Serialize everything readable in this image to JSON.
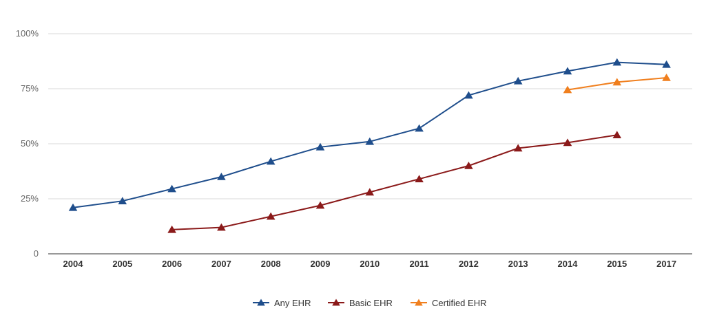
{
  "chart_data": {
    "type": "line",
    "title": "",
    "xlabel": "",
    "ylabel": "",
    "categories": [
      "2004",
      "2005",
      "2006",
      "2007",
      "2008",
      "2009",
      "2010",
      "2011",
      "2012",
      "2013",
      "2014",
      "2015",
      "2017"
    ],
    "y_ticks": [
      {
        "value": 0,
        "label": "0"
      },
      {
        "value": 25,
        "label": "25%"
      },
      {
        "value": 50,
        "label": "50%"
      },
      {
        "value": 75,
        "label": "75%"
      },
      {
        "value": 100,
        "label": "100%"
      }
    ],
    "ylim": [
      0,
      100
    ],
    "grid": true,
    "legend_position": "bottom",
    "series": [
      {
        "name": "Any EHR",
        "color": "#1f4e8c",
        "values": [
          21,
          24,
          29.5,
          35,
          42,
          48.5,
          51,
          57,
          72,
          78.5,
          83,
          87,
          86
        ]
      },
      {
        "name": "Basic EHR",
        "color": "#8b1a1a",
        "values": [
          null,
          null,
          11,
          12,
          17,
          22,
          28,
          34,
          40,
          48,
          50.5,
          54,
          null
        ]
      },
      {
        "name": "Certified EHR",
        "color": "#f07f1e",
        "values": [
          null,
          null,
          null,
          null,
          null,
          null,
          null,
          null,
          null,
          null,
          74.5,
          78,
          80
        ]
      }
    ]
  }
}
